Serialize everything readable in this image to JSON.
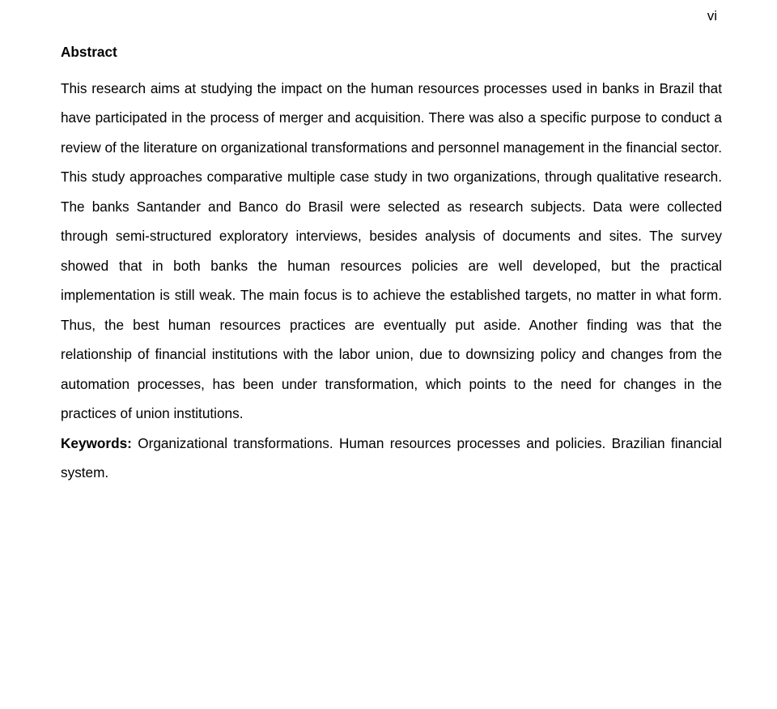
{
  "page": {
    "number": "vi",
    "background_color": "#ffffff",
    "text_color": "#000000",
    "font_family": "Arial",
    "body_fontsize": 17.2,
    "line_height": 2.12
  },
  "heading": "Abstract",
  "abstract_text": "This research aims at studying the impact on the human resources processes used in banks in Brazil that have participated in the process of merger and acquisition. There was also a specific purpose to conduct a review of the literature on organizational transformations and personnel management in the financial sector. This study approaches comparative multiple case study in two organizations, through qualitative research. The banks Santander and Banco do Brasil were selected as research subjects. Data were collected through semi-structured exploratory interviews, besides analysis of documents and sites. The survey showed that in both banks the human resources policies are well developed, but the practical implementation is still weak. The main focus is to achieve the established targets, no matter in what form. Thus, the best human resources practices are eventually put aside. Another finding was that the relationship of financial institutions with the labor union, due to downsizing policy and changes from the automation processes, has been under transformation, which points to the need for changes in the practices of union institutions.",
  "keywords_label": "Keywords:",
  "keywords_text": " Organizational transformations. Human resources processes and policies. Brazilian financial system."
}
